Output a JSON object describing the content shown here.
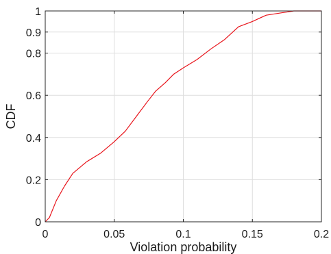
{
  "chart_data": {
    "type": "line",
    "title": "",
    "xlabel": "Violation probability",
    "ylabel": "CDF",
    "xlim": [
      0,
      0.2
    ],
    "ylim": [
      0,
      1
    ],
    "xticks": [
      0,
      0.05,
      0.1,
      0.15,
      0.2
    ],
    "xtick_labels": [
      "0",
      "0.05",
      "0.1",
      "0.15",
      "0.2"
    ],
    "yticks": [
      0,
      0.2,
      0.4,
      0.6,
      0.8,
      0.9,
      1
    ],
    "ytick_labels": [
      "0",
      "0.2",
      "0.4",
      "0.6",
      "0.8",
      "0.9",
      "1"
    ],
    "grid": true,
    "series": [
      {
        "color": "#e8141b",
        "x": [
          0,
          0.003,
          0.008,
          0.014,
          0.02,
          0.03,
          0.04,
          0.05,
          0.058,
          0.066,
          0.074,
          0.08,
          0.087,
          0.093,
          0.1,
          0.11,
          0.12,
          0.13,
          0.14,
          0.15,
          0.16,
          0.17,
          0.18,
          0.19,
          0.2
        ],
        "y": [
          0,
          0.02,
          0.1,
          0.17,
          0.23,
          0.285,
          0.325,
          0.38,
          0.43,
          0.5,
          0.57,
          0.62,
          0.66,
          0.7,
          0.73,
          0.77,
          0.82,
          0.865,
          0.925,
          0.95,
          0.98,
          0.99,
          1.0,
          1.0,
          1.0
        ]
      }
    ]
  }
}
